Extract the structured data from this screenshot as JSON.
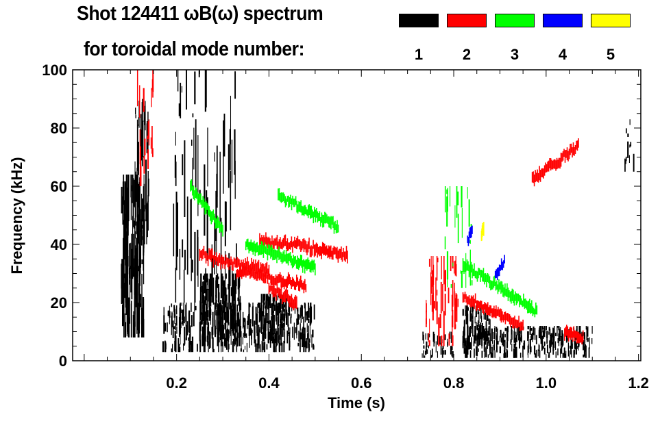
{
  "header": {
    "title_line1": "Shot 124411 ωB(ω) spectrum",
    "title_line2": "for toroidal mode number:"
  },
  "legend": [
    {
      "label": "1",
      "color": "#000000"
    },
    {
      "label": "2",
      "color": "#ff0000"
    },
    {
      "label": "3",
      "color": "#00ff00"
    },
    {
      "label": "4",
      "color": "#0000ff"
    },
    {
      "label": "5",
      "color": "#ffff00"
    }
  ],
  "chart_data": {
    "type": "heatmap",
    "title": "Shot 124411 ωB(ω) spectrum for toroidal mode number",
    "xlabel": "Time (s)",
    "ylabel": "Frequency (kHz)",
    "xlim": [
      -0.025,
      1.205
    ],
    "ylim": [
      0,
      100
    ],
    "xticks": [
      "0.2",
      "0.4",
      "0.6",
      "0.8",
      "1.0",
      "1.2"
    ],
    "xtick_values": [
      0.2,
      0.4,
      0.6,
      0.8,
      1.0,
      1.2
    ],
    "yticks": [
      "0",
      "20",
      "40",
      "60",
      "80",
      "100"
    ],
    "ytick_values": [
      0,
      20,
      40,
      60,
      80,
      100
    ],
    "blobs": [
      {
        "mode": 1,
        "t": [
          0.08,
          0.13
        ],
        "f": [
          8,
          64
        ],
        "n": 160
      },
      {
        "mode": 1,
        "t": [
          0.11,
          0.14
        ],
        "f": [
          40,
          90
        ],
        "n": 50
      },
      {
        "mode": 1,
        "t": [
          0.17,
          0.5
        ],
        "f": [
          3,
          20
        ],
        "n": 380
      },
      {
        "mode": 1,
        "t": [
          0.25,
          0.34
        ],
        "f": [
          5,
          30
        ],
        "n": 180
      },
      {
        "mode": 1,
        "t": [
          0.38,
          0.44
        ],
        "f": [
          6,
          23
        ],
        "n": 100
      },
      {
        "mode": 1,
        "t": [
          0.19,
          0.33
        ],
        "f": [
          20,
          100
        ],
        "n": 70
      },
      {
        "mode": 1,
        "t": [
          0.73,
          0.8
        ],
        "f": [
          1,
          10
        ],
        "n": 40
      },
      {
        "mode": 1,
        "t": [
          0.82,
          1.1
        ],
        "f": [
          1,
          12
        ],
        "n": 320
      },
      {
        "mode": 1,
        "t": [
          0.82,
          0.88
        ],
        "f": [
          5,
          19
        ],
        "n": 80
      },
      {
        "mode": 1,
        "t": [
          1.17,
          1.19
        ],
        "f": [
          65,
          83
        ],
        "n": 12
      },
      {
        "mode": 2,
        "t": [
          0.74,
          0.81
        ],
        "f": [
          5,
          36
        ],
        "n": 60
      },
      {
        "mode": 2,
        "t": [
          0.11,
          0.15
        ],
        "f": [
          60,
          100
        ],
        "n": 20
      },
      {
        "mode": 3,
        "t": [
          0.78,
          0.84
        ],
        "f": [
          25,
          60
        ],
        "n": 25
      }
    ],
    "lines": [
      {
        "mode": 2,
        "points": [
          [
            0.25,
            37
          ],
          [
            0.3,
            34
          ],
          [
            0.4,
            31
          ]
        ]
      },
      {
        "mode": 2,
        "points": [
          [
            0.38,
            41
          ],
          [
            0.46,
            40
          ],
          [
            0.57,
            36
          ]
        ]
      },
      {
        "mode": 2,
        "points": [
          [
            0.33,
            31
          ],
          [
            0.48,
            26
          ]
        ]
      },
      {
        "mode": 2,
        "points": [
          [
            0.4,
            25
          ],
          [
            0.46,
            20
          ]
        ]
      },
      {
        "mode": 2,
        "points": [
          [
            0.82,
            22
          ],
          [
            0.95,
            12
          ]
        ]
      },
      {
        "mode": 2,
        "points": [
          [
            0.97,
            62
          ],
          [
            1.07,
            74
          ]
        ]
      },
      {
        "mode": 2,
        "points": [
          [
            1.04,
            10
          ],
          [
            1.08,
            8
          ]
        ]
      },
      {
        "mode": 3,
        "points": [
          [
            0.42,
            57
          ],
          [
            0.55,
            46
          ]
        ]
      },
      {
        "mode": 3,
        "points": [
          [
            0.23,
            60
          ],
          [
            0.3,
            45
          ]
        ]
      },
      {
        "mode": 3,
        "points": [
          [
            0.35,
            40
          ],
          [
            0.5,
            32
          ]
        ]
      },
      {
        "mode": 3,
        "points": [
          [
            0.82,
            33
          ],
          [
            0.98,
            17
          ]
        ]
      },
      {
        "mode": 4,
        "points": [
          [
            0.89,
            29
          ],
          [
            0.91,
            34
          ]
        ]
      },
      {
        "mode": 4,
        "points": [
          [
            0.83,
            42
          ],
          [
            0.84,
            45
          ]
        ]
      },
      {
        "mode": 5,
        "points": [
          [
            0.86,
            44
          ],
          [
            0.865,
            46
          ]
        ]
      }
    ]
  }
}
